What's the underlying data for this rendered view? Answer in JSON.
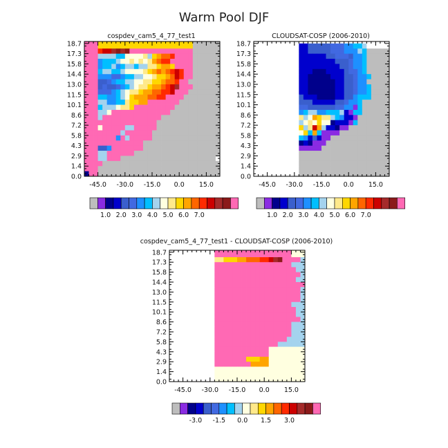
{
  "figure": {
    "title": "Warm Pool DJF"
  },
  "palettes": {
    "abs": [
      "#bdbdbd",
      "#8a2be2",
      "#00008b",
      "#0000cd",
      "#3a5fcd",
      "#4169e1",
      "#1e90ff",
      "#00bfff",
      "#a4d3ee",
      "#ffffe0",
      "#ffe98a",
      "#ffd700",
      "#ffa500",
      "#ff6600",
      "#ff2a00",
      "#cc0000",
      "#a52a2a",
      "#8b1a1a",
      "#ff69b4"
    ],
    "diff": [
      "#bdbdbd",
      "#8a2be2",
      "#00008b",
      "#0000cd",
      "#3a5fcd",
      "#4169e1",
      "#1e90ff",
      "#00bfff",
      "#a4d3ee",
      "#ffffe0",
      "#ffe98a",
      "#ffd700",
      "#ffa500",
      "#ff6600",
      "#ff2a00",
      "#cc0000",
      "#a52a2a",
      "#8b1a1a",
      "#ff69b4"
    ]
  },
  "chart_data": [
    {
      "type": "heatmap",
      "title": "cospdev_cam5_4_77_test1",
      "xlabel": "",
      "ylabel": "",
      "xlim": [
        -52.5,
        22.5
      ],
      "ylim": [
        0.0,
        19.0
      ],
      "xticks": [
        "-45.0",
        "-30.0",
        "-15.0",
        "0.0",
        "15.0"
      ],
      "xtick_values": [
        -45,
        -30,
        -15,
        0,
        15
      ],
      "yticks": [
        "0.0",
        "1.4",
        "2.9",
        "4.3",
        "5.8",
        "7.2",
        "8.6",
        "10.1",
        "11.5",
        "13.0",
        "14.4",
        "15.8",
        "17.3",
        "18.7"
      ],
      "colorbar": {
        "labels": [
          "1.0",
          "2.0",
          "3.0",
          "4.0",
          "5.0",
          "6.0",
          "7.0"
        ],
        "label_after_box": [
          1,
          3,
          5,
          7,
          9,
          11,
          13
        ]
      },
      "x_cells": [
        -50,
        -47.5,
        -45,
        -42.5,
        -40,
        -37.5,
        -35,
        -32.5,
        -30,
        -27.5,
        -25,
        -22.5,
        -20,
        -17.5,
        -15,
        -12.5,
        -10,
        -7.5,
        -5,
        -2.5,
        0,
        2.5,
        5,
        7.5,
        10,
        12.5,
        15,
        17.5,
        20
      ],
      "row_edges": [
        0.0,
        0.72,
        1.44,
        2.16,
        2.88,
        3.6,
        4.32,
        5.04,
        5.76,
        6.48,
        7.2,
        7.92,
        8.64,
        9.36,
        10.08,
        10.8,
        11.52,
        12.24,
        12.96,
        13.68,
        14.4,
        15.12,
        15.84,
        16.56,
        17.28,
        18.0,
        18.72,
        19.0
      ],
      "grid_rows": [
        "SSSBBBBBBBBBBBBBBBBBBBBB000000",
        "SSSBBBBBBBBBBBBBBBBBBBBB000000",
        "SSSEFFGHGHIJJKKKLMOPLPQS000000",
        "SSS8888779999A8BCDDEQRQS000000",
        "SSS6777899A9A9ACDEERPOPS000000",
        "SSS67786788788AABCCBOPQS000000",
        "SSS7887789999ABCDCDEFEMS000000",
        "SSS666556778899ABBCDFERS000000",
        "RSS4456778899AABBCDDEQS0000000",
        "QSS454456789AABCCDEFGPQS000000",
        "SSS5556789AABCCDDEEFSRS0000000",
        "SSS7766789BCCCDDEEPQRS00000000",
        "SSS886677ABBCCQQRQSSS000000000",
        "SSS78889AABSSSRRRRRS0000000000",
        "SSS889SSSSSOPQQRSSS00000000000",
        "SSS8SSSSSSSSSSSSS0000000000000",
        "SSSSSSSSSSSSSSSS00000000000000",
        "SSS9SSSSS88SSSSS00000000000000",
        "SSSSSSSS8PSSSSS000000000000000",
        "SSSSSSS6S8SSSSS000000000000000",
        "SSSSSSSSSSSSS00000000000000000",
        "SSS446SSSSSSS00000000000000000",
        "SSS88SSSSSS0000000000000000000",
        "SSS88SSS000000000000000000000",
        "SSSS000000000000000000000000000",
        "SSS0000000000000000000000000000",
        "2SS0000000000000000000000000000"
      ]
    },
    {
      "type": "heatmap",
      "title": "CLOUDSAT-COSP (2006-2010)",
      "xlabel": "",
      "ylabel": "",
      "xlim": [
        -52.5,
        22.5
      ],
      "ylim": [
        0.0,
        19.0
      ],
      "xticks": [
        "-45.0",
        "-30.0",
        "-15.0",
        "0.0",
        "15.0"
      ],
      "xtick_values": [
        -45,
        -30,
        -15,
        0,
        15
      ],
      "yticks": [
        "0.0",
        "1.4",
        "2.9",
        "4.3",
        "5.8",
        "7.2",
        "8.6",
        "10.1",
        "11.5",
        "13.0",
        "14.4",
        "15.8",
        "17.3",
        "18.7"
      ],
      "colorbar": {
        "labels": [
          "1.0",
          "2.0",
          "3.0",
          "4.0",
          "5.0",
          "6.0",
          "7.0"
        ],
        "label_after_box": [
          1,
          3,
          5,
          7,
          9,
          11,
          13
        ]
      },
      "x_cells": [
        -50,
        -47.5,
        -45,
        -42.5,
        -40,
        -37.5,
        -35,
        -32.5,
        -30,
        -27.5,
        -25,
        -22.5,
        -20,
        -17.5,
        -15,
        -12.5,
        -10,
        -7.5,
        -5,
        -2.5,
        0,
        2.5,
        5,
        7.5,
        10,
        12.5,
        15,
        17.5,
        20
      ],
      "row_edges": [
        0.0,
        0.72,
        1.44,
        2.16,
        2.88,
        3.6,
        4.32,
        5.04,
        5.76,
        6.48,
        7.2,
        7.92,
        8.64,
        9.36,
        10.08,
        10.8,
        11.52,
        12.24,
        12.96,
        13.68,
        14.4,
        15.12,
        15.84,
        16.56,
        17.28,
        18.0,
        18.72,
        19.0
      ],
      "grid_rows": [
        "WWWWWWWWWWWWWWWWWWWWWWWWWWWWWW",
        "WWWWWWWWWW334444455566778WWWWW",
        "WWWWWWWWWW334444455566687000000",
        "WWWWWWWWWW3333334455546670000000",
        "WWWWWWWWWW33333333444566700000000",
        "WWWWWWWWWW3333333334456670000000",
        "WWWWWWWWWW3332223333455670000000",
        "WWWWWWWWWW3322222333445667000000",
        "WWWWWWWWWW3322222233445660000000",
        "WWWWWWWWWW332222223344566700000",
        "WWWWWWWWWW3322222233445667000000",
        "WWWWWWWWWW4333222233446777000000",
        "WWWWWWWWWW4443333344566700000000",
        "WWWWWWWWWW5544444455661700000000",
        "WWWWWWWWWW67886677783177000000000",
        "WWWWWWWWWWA89CBAA8763310000000000",
        "WWWWWWWWWW89A9B992333170000000000",
        "WWWWWWWWWWB8AFC8332110000000000000",
        "WWWWWWWWWW9B7C711110000000000000000",
        "WWWWWWWWWW76343110000000000000000000",
        "WWWWWWWWWW23211100000000000000000000",
        "WWWWWWWWWW11111000000000000000000000",
        "WWWWWWWWWW0000000000000000000000000000",
        "WWWWWWWWWW0000000000000000000000000000",
        "WWWWWWWWWW0000000000000000000000000000",
        "WWWWWWWWWW0000000000000000000000000000",
        "WWWWWWWWWW0000000000000000000000000000"
      ]
    },
    {
      "type": "heatmap",
      "title": "cospdev_cam5_4_77_test1 - CLOUDSAT-COSP (2006-2010)",
      "xlabel": "",
      "ylabel": "",
      "xlim": [
        -52.5,
        22.5
      ],
      "ylim": [
        0.0,
        19.0
      ],
      "xticks": [
        "-45.0",
        "-30.0",
        "-15.0",
        "0.0",
        "15.0"
      ],
      "xtick_values": [
        -45,
        -30,
        -15,
        0,
        15
      ],
      "yticks": [
        "0.0",
        "1.4",
        "2.9",
        "4.3",
        "5.8",
        "7.2",
        "8.6",
        "10.1",
        "11.5",
        "13.0",
        "14.4",
        "15.8",
        "17.3",
        "18.7"
      ],
      "colorbar": {
        "labels": [
          "-3.0",
          "-1.5",
          "0.0",
          "1.5",
          "3.0"
        ],
        "label_after_box": [
          2,
          5,
          8,
          11,
          14
        ]
      },
      "x_cells": [
        -50,
        -47.5,
        -45,
        -42.5,
        -40,
        -37.5,
        -35,
        -32.5,
        -30,
        -27.5,
        -25,
        -22.5,
        -20,
        -17.5,
        -15,
        -12.5,
        -10,
        -7.5,
        -5,
        -2.5,
        0,
        2.5,
        5,
        7.5,
        10,
        12.5,
        15,
        17.5,
        20
      ],
      "row_edges": [
        0.0,
        0.72,
        1.44,
        2.16,
        2.88,
        3.6,
        4.32,
        5.04,
        5.76,
        6.48,
        7.2,
        7.92,
        8.64,
        9.36,
        10.08,
        10.8,
        11.52,
        12.24,
        12.96,
        13.68,
        14.4,
        15.12,
        15.84,
        16.56,
        17.28,
        18.0,
        18.72,
        19.0
      ],
      "grid_rows": [
        "WWWWWWWWWWSSSSSSSSSSSSSSSSS99999",
        "WWWWWWWWWWSSSSSSSSSSSSSSSSS9999",
        "WWWWWWWWWWAABBBCCDDDEEFGHSSSS8999",
        "WWWWWWWWWWOPOQRSSSSSSSSSSSS88888",
        "WWWWWWWWWWPQRRSSSSSSPPPPSSRS8888",
        "WWWWWWWWWWPPRRSSRSSSPPPSSSSRS888",
        "WWWWWWWWWWQQRQRSSSSRRPSSSPSS8888",
        "WWWWWWWWWWRSRRSSSRQRRSSSPSRSSS888",
        "WWWWWWWWWWNOOMNOPSRRRSSPPSSRS888",
        "WWWWWWWWWWNONMNOOPPRRRQQRPSSR888",
        "WWWWWWWWWWNOOQRSSSPPRRRQRSRSS888",
        "WWWWWWWWWWOOPPRRRRRRRRSPSSR8888",
        "WWWWWWWWWWSSSPQRRRRRQQRSSSSR8888",
        "WWWWWWWWWWSSSSSSRQRRSRRRRRRR8888",
        "WWWWWWWWWWSSSSSSSSSSSSSRQQRRR8888",
        "WWWWWWWWWWSSSSSSSSSSSSSSSRR88888",
        "WWWWWWWWWWSSSSSSSSSSSSSSSRR8888",
        "WWWWWWWWWWSSSSSSSSSSSRQQRSS88888",
        "WWWWWWWWWWSSSSSSSSSSSSQPPS88888",
        "WWWWWWWWWWSSSSSSSSSSSSSS8888889",
        "WWWWWWWWWWSSSSSSSSSSSS999999999",
        "WWWWWWWWWWSSSSSSSSSSSS999999999",
        "WWWWWWWWWWSSSSSSSBBBCC9999999999",
        "WWWWWWWWWWSSSSSSSSCCCC9999999999",
        "WWWWWWWWWW999999999999999999999",
        "WWWWWWWWWW99999999999999999999999",
        "WWWWWWWWWW999999999999999999999999"
      ]
    }
  ]
}
